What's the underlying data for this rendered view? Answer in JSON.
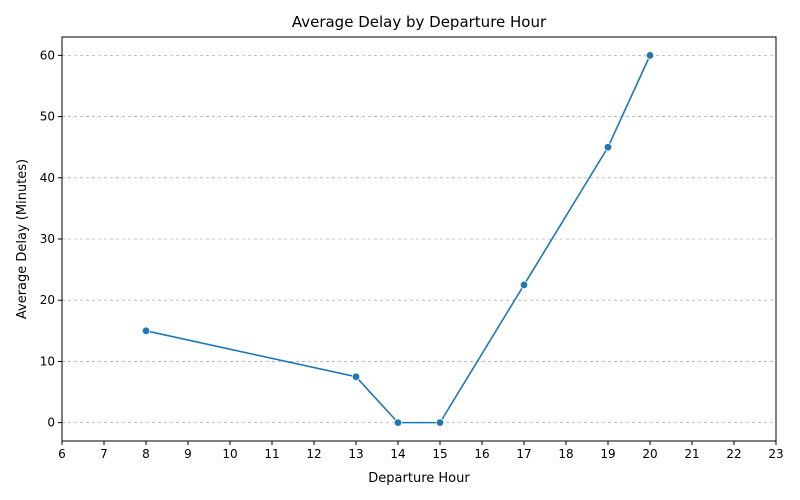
{
  "chart_data": {
    "type": "line",
    "title": "Average Delay by Departure Hour",
    "xlabel": "Departure Hour",
    "ylabel": "Average Delay (Minutes)",
    "x_ticks": [
      6,
      7,
      8,
      9,
      10,
      11,
      12,
      13,
      14,
      15,
      16,
      17,
      18,
      19,
      20,
      21,
      22,
      23
    ],
    "y_ticks": [
      0,
      10,
      20,
      30,
      40,
      50,
      60
    ],
    "xlim": [
      6,
      23
    ],
    "ylim": [
      -3,
      63
    ],
    "grid": "y-dashed",
    "series": [
      {
        "x": [
          8,
          13,
          14,
          15,
          17,
          19,
          20
        ],
        "values": [
          15,
          7.5,
          0,
          0,
          22.5,
          45,
          60
        ],
        "color": "#1f77b4",
        "marker": "circle"
      }
    ]
  }
}
